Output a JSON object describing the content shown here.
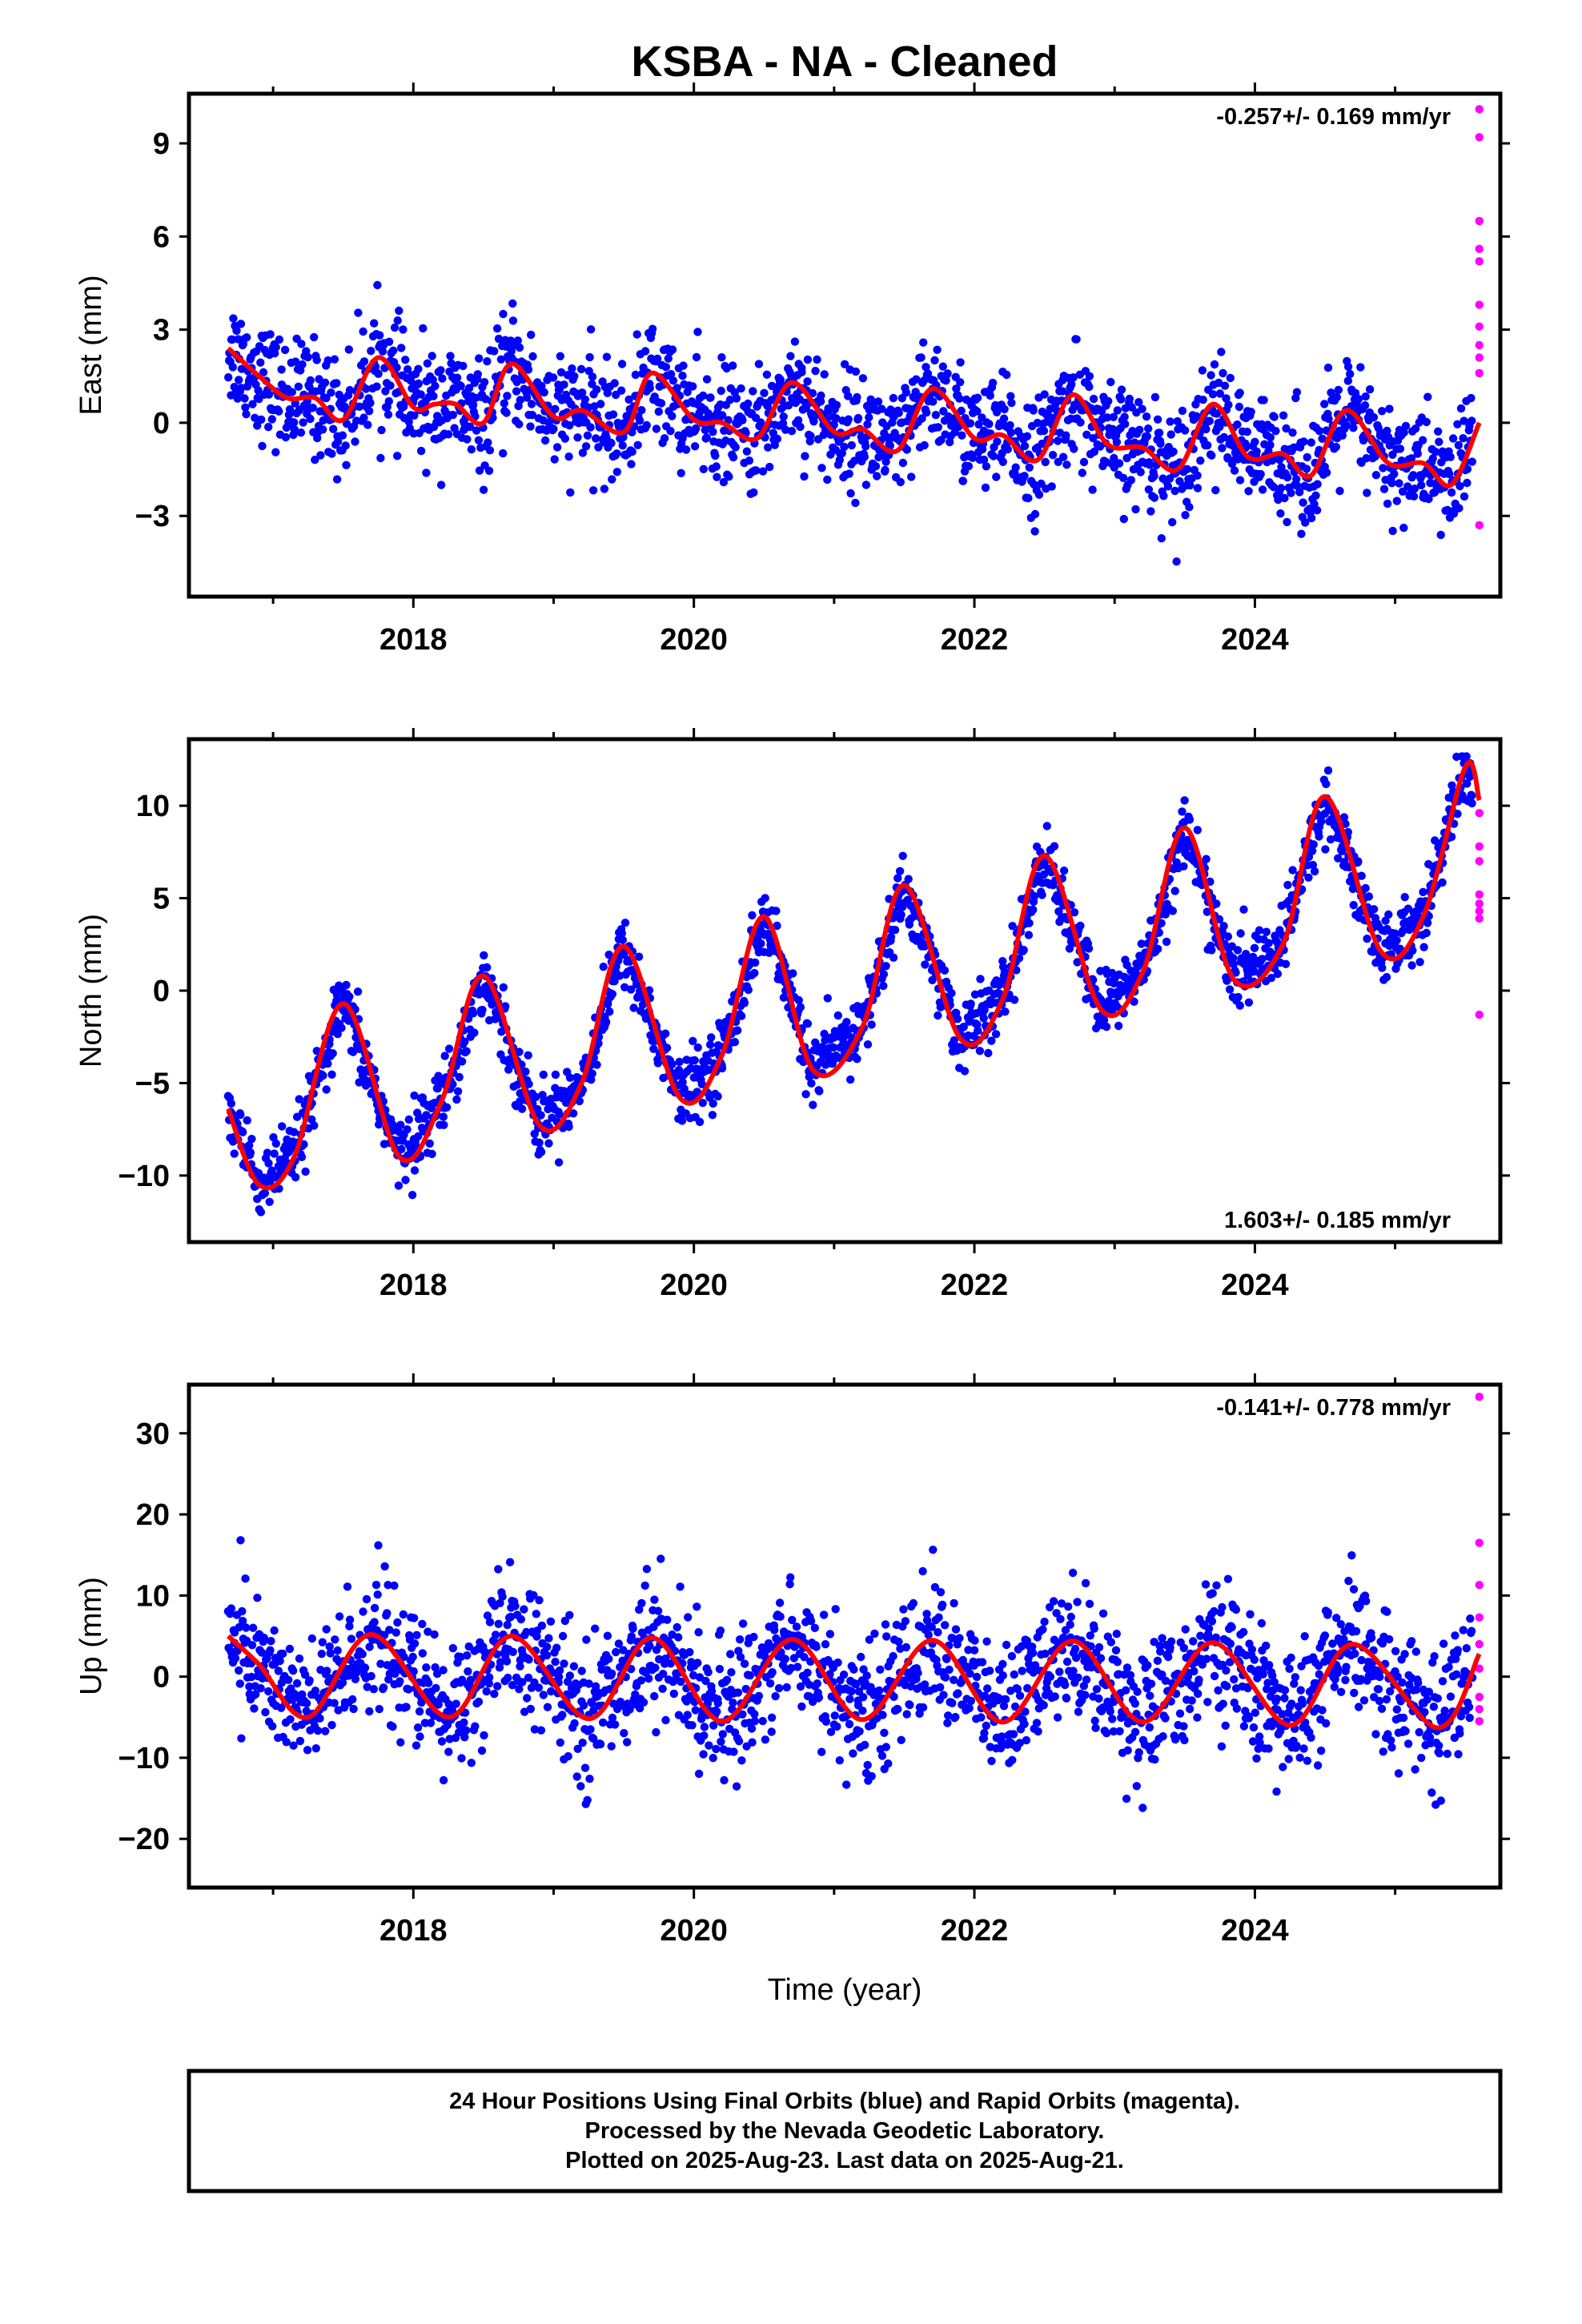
{
  "title": "KSBA  - NA - Cleaned",
  "colors": {
    "final": "#0000ff",
    "rapid": "#ff00ff",
    "model": "#ff0000"
  },
  "chart_data": [
    {
      "type": "scatter",
      "component": "east",
      "ylabel": "East (mm)",
      "xlabel": "",
      "rate_text": "-0.257+/- 0.169 mm/yr",
      "rate_position": "top-right",
      "xlim": [
        2016.4,
        2025.75
      ],
      "ylim": [
        -5.6,
        10.6
      ],
      "yticks": [
        -3,
        0,
        3,
        6,
        9
      ],
      "ytick_labels": [
        "−3",
        "0",
        "3",
        "6",
        "9"
      ],
      "xticks": [
        2018,
        2020,
        2022,
        2024
      ],
      "xtick_labels": [
        "2018",
        "2020",
        "2022",
        "2024"
      ],
      "data_start": 2016.68,
      "data_end": 2025.55,
      "series": [
        {
          "name": "Final Orbits (blue)",
          "color": "#0000ff",
          "trend": [
            [
              2016.68,
              1.9
            ],
            [
              2018.0,
              0.9
            ],
            [
              2020.0,
              0.0
            ],
            [
              2022.0,
              -0.5
            ],
            [
              2024.0,
              -1.0
            ],
            [
              2025.55,
              -1.3
            ]
          ],
          "noise_sd": 0.9
        },
        {
          "name": "Rapid Orbits (magenta)",
          "color": "#ff00ff",
          "points": [
            [
              2025.6,
              10.1
            ],
            [
              2025.6,
              9.2
            ],
            [
              2025.6,
              6.5
            ],
            [
              2025.6,
              5.6
            ],
            [
              2025.6,
              5.2
            ],
            [
              2025.6,
              3.8
            ],
            [
              2025.6,
              3.1
            ],
            [
              2025.6,
              2.5
            ],
            [
              2025.6,
              2.1
            ],
            [
              2025.6,
              1.6
            ],
            [
              2025.6,
              -3.3
            ]
          ]
        }
      ],
      "model_curve": [
        [
          2016.68,
          2.4
        ],
        [
          2016.9,
          1.5
        ],
        [
          2017.1,
          0.8
        ],
        [
          2017.3,
          0.8
        ],
        [
          2017.5,
          0.1
        ],
        [
          2017.75,
          2.1
        ],
        [
          2018.0,
          0.5
        ],
        [
          2018.15,
          0.6
        ],
        [
          2018.3,
          0.6
        ],
        [
          2018.5,
          0.0
        ],
        [
          2018.7,
          1.9
        ],
        [
          2019.0,
          0.2
        ],
        [
          2019.2,
          0.4
        ],
        [
          2019.5,
          -0.3
        ],
        [
          2019.7,
          1.6
        ],
        [
          2020.0,
          0.1
        ],
        [
          2020.2,
          0.0
        ],
        [
          2020.45,
          -0.5
        ],
        [
          2020.7,
          1.3
        ],
        [
          2021.0,
          -0.3
        ],
        [
          2021.2,
          -0.2
        ],
        [
          2021.45,
          -0.9
        ],
        [
          2021.7,
          1.1
        ],
        [
          2022.0,
          -0.5
        ],
        [
          2022.2,
          -0.4
        ],
        [
          2022.45,
          -1.2
        ],
        [
          2022.7,
          0.9
        ],
        [
          2022.95,
          -0.7
        ],
        [
          2023.2,
          -0.8
        ],
        [
          2023.45,
          -1.5
        ],
        [
          2023.7,
          0.6
        ],
        [
          2023.95,
          -1.1
        ],
        [
          2024.2,
          -1.0
        ],
        [
          2024.4,
          -1.7
        ],
        [
          2024.65,
          0.4
        ],
        [
          2024.95,
          -1.3
        ],
        [
          2025.2,
          -1.3
        ],
        [
          2025.4,
          -2.0
        ],
        [
          2025.6,
          0.0
        ]
      ],
      "seasonal_amp": 1.0
    },
    {
      "type": "scatter",
      "component": "north",
      "ylabel": "North (mm)",
      "xlabel": "",
      "rate_text": "1.603+/- 0.185 mm/yr",
      "rate_position": "bottom-right",
      "xlim": [
        2016.4,
        2025.75
      ],
      "ylim": [
        -13.6,
        13.6
      ],
      "yticks": [
        -10,
        -5,
        0,
        5,
        10
      ],
      "ytick_labels": [
        "−10",
        "−5",
        "0",
        "5",
        "10"
      ],
      "xticks": [
        2018,
        2020,
        2022,
        2024
      ],
      "xtick_labels": [
        "2018",
        "2020",
        "2022",
        "2024"
      ],
      "data_start": 2016.68,
      "data_end": 2025.55,
      "series": [
        {
          "name": "Final Orbits (blue)",
          "color": "#0000ff",
          "trend": [
            [
              2016.68,
              -5.9
            ],
            [
              2025.55,
              8.3
            ]
          ],
          "noise_sd": 0.9
        },
        {
          "name": "Rapid Orbits (magenta)",
          "color": "#ff00ff",
          "points": [
            [
              2025.6,
              9.6
            ],
            [
              2025.6,
              7.8
            ],
            [
              2025.6,
              7.0
            ],
            [
              2025.6,
              5.2
            ],
            [
              2025.6,
              4.7
            ],
            [
              2025.6,
              4.3
            ],
            [
              2025.6,
              3.9
            ],
            [
              2025.6,
              -1.3
            ]
          ]
        }
      ],
      "model_curve": [
        [
          2016.68,
          -6.4
        ],
        [
          2016.9,
          -10.5
        ],
        [
          2017.15,
          -9.0
        ],
        [
          2017.5,
          -0.7
        ],
        [
          2017.9,
          -9.0
        ],
        [
          2018.2,
          -6.0
        ],
        [
          2018.5,
          0.8
        ],
        [
          2018.9,
          -7.3
        ],
        [
          2019.2,
          -5.0
        ],
        [
          2019.5,
          2.4
        ],
        [
          2019.9,
          -5.8
        ],
        [
          2020.2,
          -3.5
        ],
        [
          2020.5,
          4.0
        ],
        [
          2020.85,
          -4.3
        ],
        [
          2021.2,
          -2.0
        ],
        [
          2021.5,
          5.7
        ],
        [
          2021.9,
          -2.6
        ],
        [
          2022.2,
          -0.5
        ],
        [
          2022.5,
          7.3
        ],
        [
          2022.9,
          -1.0
        ],
        [
          2023.2,
          1.0
        ],
        [
          2023.5,
          8.8
        ],
        [
          2023.85,
          0.6
        ],
        [
          2024.2,
          2.5
        ],
        [
          2024.5,
          10.5
        ],
        [
          2024.9,
          2.1
        ],
        [
          2025.2,
          4.0
        ],
        [
          2025.5,
          12.1
        ],
        [
          2025.6,
          10.3
        ]
      ],
      "seasonal_amp": 4.7
    },
    {
      "type": "scatter",
      "component": "up",
      "ylabel": "Up (mm)",
      "xlabel": "Time (year)",
      "rate_text": "-0.141+/- 0.778 mm/yr",
      "rate_position": "top-right",
      "xlim": [
        2016.4,
        2025.75
      ],
      "ylim": [
        -26,
        36
      ],
      "yticks": [
        -20,
        -10,
        0,
        10,
        20,
        30
      ],
      "ytick_labels": [
        "−20",
        "−10",
        "0",
        "10",
        "20",
        "30"
      ],
      "xticks": [
        2018,
        2020,
        2022,
        2024
      ],
      "xtick_labels": [
        "2018",
        "2020",
        "2022",
        "2024"
      ],
      "data_start": 2016.68,
      "data_end": 2025.55,
      "series": [
        {
          "name": "Final Orbits (blue)",
          "color": "#0000ff",
          "trend": [
            [
              2016.68,
              0.0
            ],
            [
              2025.55,
              -1.0
            ]
          ],
          "noise_sd": 4.0
        },
        {
          "name": "Rapid Orbits (magenta)",
          "color": "#ff00ff",
          "points": [
            [
              2025.6,
              34.5
            ],
            [
              2025.6,
              16.5
            ],
            [
              2025.6,
              11.3
            ],
            [
              2025.6,
              7.3
            ],
            [
              2025.6,
              4.0
            ],
            [
              2025.6,
              1.0
            ],
            [
              2025.6,
              -2.5
            ],
            [
              2025.6,
              -4.0
            ],
            [
              2025.6,
              -5.5
            ]
          ]
        }
      ],
      "model_curve": [
        [
          2016.68,
          5.0
        ],
        [
          2016.9,
          1.5
        ],
        [
          2017.25,
          -5.0
        ],
        [
          2017.7,
          5.2
        ],
        [
          2018.25,
          -5.0
        ],
        [
          2018.7,
          5.0
        ],
        [
          2019.25,
          -5.2
        ],
        [
          2019.7,
          4.8
        ],
        [
          2020.2,
          -5.5
        ],
        [
          2020.7,
          4.6
        ],
        [
          2021.2,
          -5.3
        ],
        [
          2021.7,
          4.5
        ],
        [
          2022.2,
          -5.6
        ],
        [
          2022.7,
          4.4
        ],
        [
          2023.2,
          -5.6
        ],
        [
          2023.7,
          4.2
        ],
        [
          2024.25,
          -6.0
        ],
        [
          2024.7,
          4.0
        ],
        [
          2025.3,
          -6.3
        ],
        [
          2025.6,
          2.8
        ]
      ],
      "seasonal_amp": 5.1
    }
  ],
  "footer": {
    "line1": "24 Hour Positions Using Final Orbits (blue) and Rapid Orbits (magenta).",
    "line2": "Processed by the Nevada Geodetic Laboratory.",
    "line3": "Plotted on 2025-Aug-23. Last data on 2025-Aug-21."
  }
}
